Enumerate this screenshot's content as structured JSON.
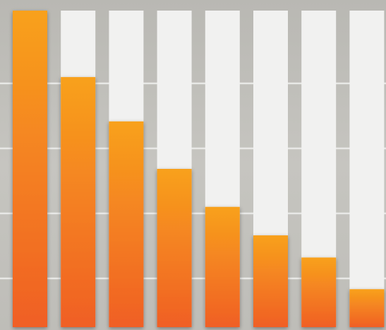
{
  "chart_data": {
    "type": "bar",
    "categories": [
      "",
      "",
      "",
      "",
      "",
      "",
      "",
      ""
    ],
    "values": [
      1.0,
      0.79,
      0.65,
      0.5,
      0.38,
      0.29,
      0.22,
      0.12
    ],
    "ylim": [
      0,
      1
    ],
    "grid": true,
    "title": "",
    "xlabel": "",
    "ylabel": "",
    "colors": {
      "bar_top": "#f8a11d",
      "bar_bottom": "#f05f25",
      "track": "#f1f1f0",
      "background": "#c2c1bc",
      "gridline": "#e8e8e6"
    }
  }
}
